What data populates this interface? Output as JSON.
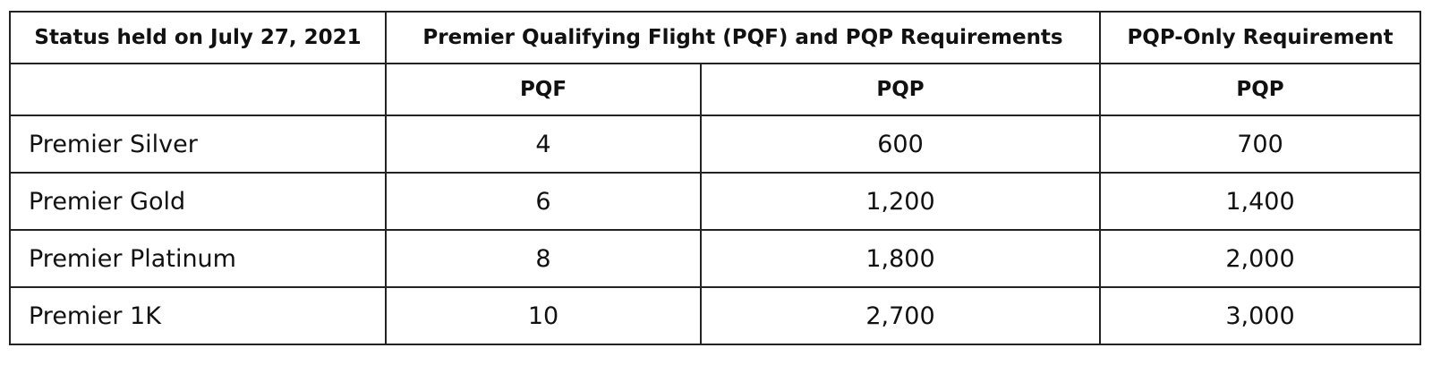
{
  "table": {
    "header": [
      "Status held on July 27, 2021",
      "Premier Qualifying Flight (PQF) and PQP Requirements",
      "PQP-Only Requirement"
    ],
    "subheader": [
      "PQF",
      "PQP",
      "PQP"
    ],
    "rows": [
      [
        "Premier Silver",
        "4",
        "600",
        "700"
      ],
      [
        "Premier Gold",
        "6",
        "1,200",
        "1,400"
      ],
      [
        "Premier Platinum",
        "8",
        "1,800",
        "2,000"
      ],
      [
        "Premier 1K",
        "10",
        "2,700",
        "3,000"
      ]
    ]
  }
}
